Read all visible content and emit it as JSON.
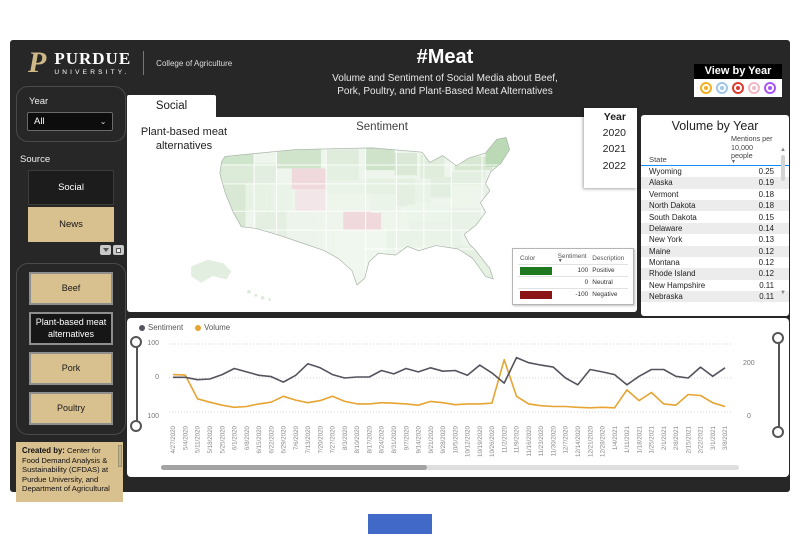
{
  "header": {
    "brand": {
      "logo_letter": "P",
      "wordmark": "PURDUE",
      "wordmark_sub": "UNIVERSITY.",
      "college": "College of Agriculture",
      "gold": "#ceb888"
    },
    "title": "#Meat",
    "subtitle_line1": "Volume and Sentiment of Social Media about Beef,",
    "subtitle_line2": "Pork, Poultry, and Plant-Based Meat Alternatives",
    "view_by_year_label": "View by Year",
    "year_icons": [
      {
        "name": "bookmark-yellow",
        "color": "#f2b01e"
      },
      {
        "name": "bookmark-blue",
        "color": "#9fc5e8"
      },
      {
        "name": "bookmark-red",
        "color": "#dd3a2f"
      },
      {
        "name": "bookmark-pink",
        "color": "#f0b9c4"
      },
      {
        "name": "bookmark-purple",
        "color": "#a855f7"
      }
    ]
  },
  "sidebar": {
    "year_label": "Year",
    "year_value": "All",
    "source_label": "Source",
    "sources": [
      {
        "label": "Social",
        "selected": true
      },
      {
        "label": "News",
        "selected": false
      }
    ],
    "topics": [
      {
        "label": "Beef",
        "selected": false
      },
      {
        "label": "Plant-based meat alternatives",
        "selected": true
      },
      {
        "label": "Pork",
        "selected": false
      },
      {
        "label": "Poultry",
        "selected": false
      }
    ],
    "credit": {
      "heading": "Created by:",
      "body": " Center for Food Demand Analysis & Sustainability (CFDAS) at Purdue University, and Department of Agricultural"
    }
  },
  "map": {
    "tab_label": "Social",
    "topic_label": "Plant-based meat alternatives",
    "title": "Sentiment",
    "year_list": {
      "header": "Year",
      "items": [
        "2020",
        "2021",
        "2022"
      ]
    },
    "legend": {
      "col_color": "Color",
      "col_sentiment": "Sentiment",
      "col_description": "Description",
      "rows": [
        {
          "color": "#1f7a1f",
          "sentiment": "100",
          "description": "Positive"
        },
        {
          "color": "",
          "sentiment": "0",
          "description": "Neutral"
        },
        {
          "color": "#8b1414",
          "sentiment": "-100",
          "description": "Negative"
        }
      ]
    }
  },
  "volume_table": {
    "title": "Volume by Year",
    "col_state": "State",
    "col_mentions": "Mentions per 10,000 people",
    "rows": [
      [
        "Wyoming",
        "0.25"
      ],
      [
        "Alaska",
        "0.19"
      ],
      [
        "Vermont",
        "0.18"
      ],
      [
        "North Dakota",
        "0.18"
      ],
      [
        "South Dakota",
        "0.15"
      ],
      [
        "Delaware",
        "0.14"
      ],
      [
        "New York",
        "0.13"
      ],
      [
        "Maine",
        "0.12"
      ],
      [
        "Montana",
        "0.12"
      ],
      [
        "Rhode Island",
        "0.12"
      ],
      [
        "New Hampshire",
        "0.11"
      ],
      [
        "Nebraska",
        "0.11"
      ]
    ]
  },
  "chart_data": {
    "type": "line",
    "legend_position": "top-left",
    "grid": "dotted-horizontal",
    "x": [
      "4/27/2020",
      "5/4/2020",
      "5/11/2020",
      "5/18/2020",
      "5/25/2020",
      "6/1/2020",
      "6/8/2020",
      "6/15/2020",
      "6/22/2020",
      "6/29/2020",
      "7/6/2020",
      "7/13/2020",
      "7/20/2020",
      "7/27/2020",
      "8/3/2020",
      "8/10/2020",
      "8/17/2020",
      "8/24/2020",
      "8/31/2020",
      "9/7/2020",
      "9/14/2020",
      "9/21/2020",
      "9/28/2020",
      "10/5/2020",
      "10/12/2020",
      "10/19/2020",
      "10/26/2020",
      "11/2/2020",
      "11/9/2020",
      "11/16/2020",
      "11/23/2020",
      "11/30/2020",
      "12/7/2020",
      "12/14/2020",
      "12/21/2020",
      "12/28/2020",
      "1/4/2021",
      "1/11/2021",
      "1/18/2021",
      "1/25/2021",
      "2/1/2021",
      "2/8/2021",
      "2/15/2021",
      "2/22/2021",
      "3/1/2021",
      "3/8/2021"
    ],
    "series": [
      {
        "name": "Sentiment",
        "axis": "left",
        "color": "#54545e",
        "values": [
          2,
          2,
          -5,
          -3,
          10,
          28,
          18,
          8,
          4,
          -12,
          8,
          42,
          30,
          10,
          0,
          3,
          3,
          22,
          12,
          28,
          18,
          30,
          20,
          22,
          8,
          38,
          15,
          -15,
          60,
          45,
          38,
          32,
          0,
          -20,
          25,
          18,
          10,
          -20,
          5,
          25,
          25,
          5,
          0,
          32,
          5,
          30
        ]
      },
      {
        "name": "Volume",
        "axis": "right",
        "color": "#e6a432",
        "values": [
          170,
          168,
          75,
          62,
          50,
          42,
          45,
          55,
          62,
          85,
          70,
          60,
          68,
          85,
          65,
          55,
          55,
          60,
          58,
          55,
          50,
          65,
          60,
          52,
          55,
          55,
          58,
          228,
          85,
          55,
          48,
          45,
          45,
          42,
          40,
          42,
          40,
          110,
          68,
          100,
          55,
          50,
          92,
          88,
          60,
          45
        ]
      }
    ],
    "left_axis": {
      "ticks": [
        "100",
        "0",
        "100"
      ],
      "range": [
        -100,
        100
      ]
    },
    "right_axis": {
      "ticks": [
        "200",
        "0"
      ],
      "range": [
        0,
        275
      ]
    }
  },
  "footer": {
    "bar_color": "#4169c8"
  }
}
